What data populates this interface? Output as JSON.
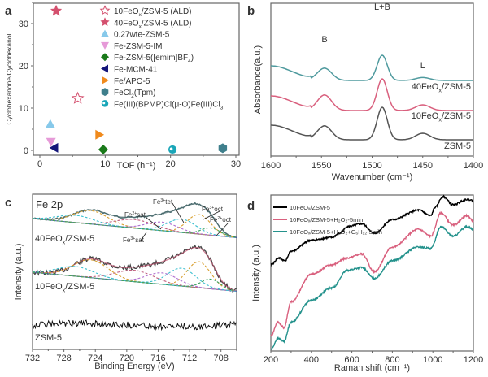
{
  "chart_data": [
    {
      "panel": "a",
      "type": "scatter",
      "xlabel": "TOF (h⁻¹)",
      "ylabel": "Cyclohexanone/Cyclohexanol",
      "xlim": [
        -1,
        30
      ],
      "ylim": [
        -1.5,
        34
      ],
      "xticks": [
        0,
        10,
        20,
        30
      ],
      "yticks": [
        0,
        10,
        20,
        30
      ],
      "legend_position": "top-right",
      "series": [
        {
          "name": "10FeOx/ZSM-5 (ALD)",
          "label_main": "10FeO",
          "label_sub": "x",
          "label_rest": "/ZSM-5 (ALD)",
          "marker": "star-open",
          "color": "#d4506e",
          "points": [
            [
              5.8,
              12.3
            ]
          ]
        },
        {
          "name": "40FeOx/ZSM-5 (ALD)",
          "label_main": "40FeO",
          "label_sub": "x",
          "label_rest": "/ZSM-5 (ALD)",
          "marker": "star",
          "color": "#d4506e",
          "points": [
            [
              2.5,
              33
            ]
          ]
        },
        {
          "name": "0.27wte-ZSM-5",
          "label_main": "0.27wte-ZSM-5",
          "label_sub": "",
          "label_rest": "",
          "marker": "triangle-up",
          "color": "#87c9ea",
          "points": [
            [
              1.6,
              6.2
            ]
          ]
        },
        {
          "name": "Fe-ZSM-5-IM",
          "label_main": "Fe-ZSM-5-IM",
          "label_sub": "",
          "label_rest": "",
          "marker": "triangle-down",
          "color": "#e69ad8",
          "points": [
            [
              1.7,
              2.0
            ]
          ]
        },
        {
          "name": "Fe-ZSM-5([emim]BF4)",
          "label_main": "Fe-ZSM-5([emim]BF",
          "label_sub": "4",
          "label_rest": ")",
          "marker": "diamond",
          "color": "#1a7a1a",
          "points": [
            [
              9.7,
              0.2
            ]
          ]
        },
        {
          "name": "Fe-MCM-41",
          "label_main": "Fe-MCM-41",
          "label_sub": "",
          "label_rest": "",
          "marker": "triangle-left",
          "color": "#14167a",
          "points": [
            [
              2.2,
              0.6
            ]
          ]
        },
        {
          "name": "Fe/APO-5",
          "label_main": "Fe/APO-5",
          "label_sub": "",
          "label_rest": "",
          "marker": "triangle-right",
          "color": "#f08a1c",
          "points": [
            [
              9.1,
              3.7
            ]
          ]
        },
        {
          "name": "FeCl2(Tpm)",
          "label_main": "FeCl",
          "label_sub": "2",
          "label_rest": "(Tpm)",
          "marker": "hexagon",
          "color": "#3f7f8c",
          "points": [
            [
              28,
              0.5
            ]
          ]
        },
        {
          "name": "Fe(III)(BPMP)Cl(μ-O)Fe(III)Cl3",
          "label_main": "Fe(III)(BPMP)Cl(μ-O)Fe(III)Cl",
          "label_sub": "3",
          "label_rest": "",
          "marker": "circle",
          "color": "#1aa6b8",
          "points": [
            [
              20.3,
              0.2
            ]
          ]
        }
      ]
    },
    {
      "panel": "b",
      "type": "line",
      "xlabel": "Wavenumber (cm⁻¹)",
      "ylabel": "Absorbance(a.u.)",
      "xlim": [
        1600,
        1400
      ],
      "xticks": [
        1600,
        1550,
        1500,
        1450,
        1400
      ],
      "annotations": [
        {
          "text": "B",
          "x": 1547
        },
        {
          "text": "L+B",
          "x": 1490
        },
        {
          "text": "L",
          "x": 1450
        }
      ],
      "series": [
        {
          "name": "40FeOx/ZSM-5",
          "label_main": "40FeO",
          "label_sub": "x",
          "label_rest": "/ZSM-5",
          "color": "#4f9a9e",
          "offset": 2.0,
          "peaks": [
            [
              1547,
              0.75
            ],
            [
              1490,
              1.55
            ],
            [
              1450,
              0.18
            ]
          ]
        },
        {
          "name": "10FeOx/ZSM-5",
          "label_main": "10FeO",
          "label_sub": "x",
          "label_rest": "/ZSM-5",
          "color": "#d9607e",
          "offset": 1.2,
          "peaks": [
            [
              1547,
              0.95
            ],
            [
              1490,
              1.95
            ],
            [
              1450,
              0.35
            ]
          ]
        },
        {
          "name": "ZSM-5",
          "label_main": "ZSM-5",
          "label_sub": "",
          "label_rest": "",
          "color": "#555555",
          "offset": 0.0,
          "peaks": [
            [
              1547,
              0.85
            ],
            [
              1490,
              2.0
            ],
            [
              1450,
              0.4
            ]
          ]
        }
      ]
    },
    {
      "panel": "c",
      "type": "line",
      "title": "Fe 2p",
      "xlabel": "Binding Energy (eV)",
      "ylabel": "Intensity (a.u.)",
      "xlim": [
        732,
        706
      ],
      "xticks": [
        732,
        728,
        724,
        720,
        716,
        712,
        708
      ],
      "annotations": [
        {
          "text": "Fe³⁺tet",
          "main": "Fe",
          "sup": "3+",
          "rest": "tet"
        },
        {
          "text": "Fe²⁺sat",
          "main": "Fe",
          "sup": "2+",
          "rest": "sat"
        },
        {
          "text": "Fe³⁺oct",
          "main": "Fe",
          "sup": "3+",
          "rest": "oct"
        },
        {
          "text": "Fe²⁺oct",
          "main": "Fe",
          "sup": "2+",
          "rest": "oct"
        },
        {
          "text": "Fe³⁺sat",
          "main": "Fe",
          "sup": "3+",
          "rest": "sat"
        }
      ],
      "series": [
        {
          "name": "40FeOx/ZSM-5",
          "label_main": "40FeO",
          "label_sub": "x",
          "label_rest": "/ZSM-5",
          "color": "#4a6b6e",
          "fit_color": "#4a6b6e"
        },
        {
          "name": "10FeOx/ZSM-5",
          "label_main": "10FeO",
          "label_sub": "x",
          "label_rest": "/ZSM-5",
          "color": "#444444",
          "fit_color": "#c0506e"
        },
        {
          "name": "ZSM-5",
          "label_main": "ZSM-5",
          "label_sub": "",
          "label_rest": "",
          "color": "#111111"
        }
      ],
      "components": [
        {
          "name": "Fe3+oct",
          "center": 710.8,
          "color": "#d9a030"
        },
        {
          "name": "Fe3+tet",
          "center": 713.0,
          "color": "#3cc0d0"
        },
        {
          "name": "Fe2+sat",
          "center": 715.5,
          "color": "#b070d0"
        },
        {
          "name": "Fe2+oct",
          "center": 709.5,
          "color": "#3aa060"
        },
        {
          "name": "Fe3+sat",
          "center": 719.0,
          "color": "#c06080"
        }
      ]
    },
    {
      "panel": "d",
      "type": "line",
      "xlabel": "Raman shift (cm⁻¹)",
      "ylabel": "Intensity (a.u.)",
      "xlim": [
        200,
        1200
      ],
      "xticks": [
        200,
        400,
        600,
        800,
        1000,
        1200
      ],
      "legend_position": "top-left",
      "series": [
        {
          "name": "10FeOx/ZSM-5",
          "label": "10FeOₓ/ZSM-5",
          "color": "#000000",
          "x": [
            200,
            240,
            270,
            300,
            400,
            500,
            540,
            580,
            650,
            710,
            800,
            930,
            990,
            1010,
            1050,
            1100,
            1170,
            1200
          ],
          "y": [
            0.62,
            0.67,
            0.65,
            0.72,
            0.8,
            0.82,
            0.85,
            0.9,
            0.92,
            0.85,
            0.95,
            1.02,
            0.98,
            1.04,
            1.12,
            1.06,
            1.1,
            1.09
          ]
        },
        {
          "name": "10FeOx/ZSM-5+H2O2-5min",
          "label": "10FeOₓ/ZSM-5+H₂O₂-5min",
          "color": "#d9607e",
          "x": [
            200,
            235,
            265,
            300,
            400,
            500,
            580,
            650,
            710,
            800,
            930,
            990,
            1040,
            1100,
            1170,
            1200
          ],
          "y": [
            0.1,
            0.2,
            0.16,
            0.35,
            0.55,
            0.62,
            0.67,
            0.7,
            0.57,
            0.75,
            0.88,
            0.83,
            1.0,
            0.91,
            0.98,
            0.94
          ]
        },
        {
          "name": "10FeOx/ZSM-5+H2O2+C6H12-5min",
          "label": "10FeOₓ/ZSM-5+H₂O₂+C₆H₁₂-5min",
          "color": "#24928c",
          "x": [
            200,
            235,
            265,
            300,
            400,
            500,
            580,
            650,
            710,
            800,
            930,
            990,
            1040,
            1100,
            1170,
            1200
          ],
          "y": [
            0.0,
            0.08,
            0.06,
            0.2,
            0.36,
            0.45,
            0.58,
            0.6,
            0.52,
            0.65,
            0.75,
            0.74,
            0.9,
            0.83,
            0.9,
            0.88
          ]
        }
      ]
    }
  ],
  "panel_labels": [
    "a",
    "b",
    "c",
    "d"
  ]
}
